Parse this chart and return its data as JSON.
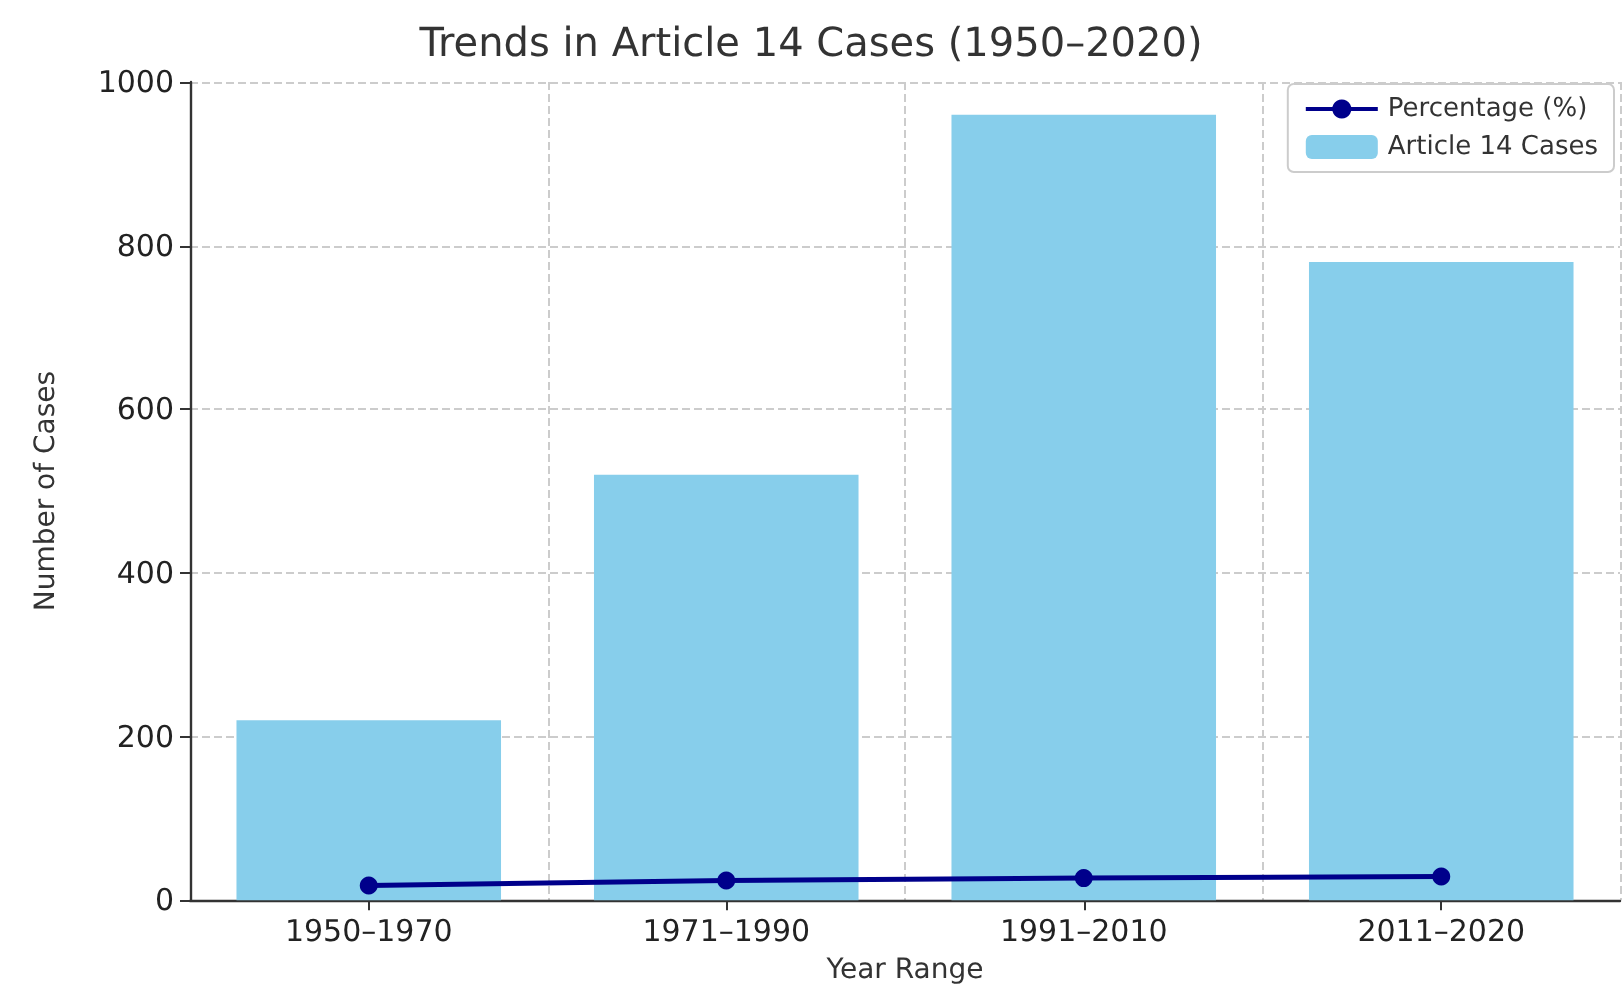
{
  "chart_data": {
    "type": "bar",
    "title": "Trends in Article 14 Cases (1950–2020)",
    "xlabel": "Year Range",
    "ylabel": "Number of Cases",
    "categories": [
      "1950–1970",
      "1971–1990",
      "1991–2010",
      "2011–2020"
    ],
    "series": [
      {
        "name": "Percentage (%)",
        "type": "line",
        "color": "#00008b",
        "values": [
          18,
          24,
          27,
          29
        ]
      },
      {
        "name": "Article 14 Cases",
        "color": "#87ceeb",
        "values": [
          220,
          520,
          960,
          780
        ]
      }
    ],
    "ylim": [
      0,
      1000
    ],
    "yticks": [
      0,
      200,
      400,
      600,
      800,
      1000
    ],
    "grid": true,
    "legend": "top right",
    "marker": "circle",
    "line_style": "solid"
  }
}
